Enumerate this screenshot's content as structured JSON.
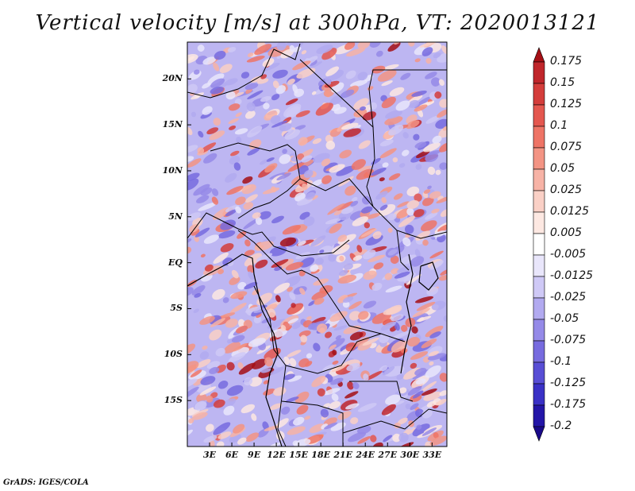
{
  "title": "Vertical velocity [m/s] at 300hPa, VT: 2020013121",
  "credit": "GrADS: IGES/COLA",
  "map": {
    "lon_range": [
      0,
      35
    ],
    "lat_range": [
      -20,
      24
    ],
    "lat_labels": [
      {
        "lat": 20,
        "text": "20N"
      },
      {
        "lat": 15,
        "text": "15N"
      },
      {
        "lat": 10,
        "text": "10N"
      },
      {
        "lat": 5,
        "text": "5N"
      },
      {
        "lat": 0,
        "text": "EQ"
      },
      {
        "lat": -5,
        "text": "5S"
      },
      {
        "lat": -10,
        "text": "10S"
      },
      {
        "lat": -15,
        "text": "15S"
      }
    ],
    "lon_labels": [
      {
        "lon": 3,
        "text": "3E"
      },
      {
        "lon": 6,
        "text": "6E"
      },
      {
        "lon": 9,
        "text": "9E"
      },
      {
        "lon": 12,
        "text": "12E"
      },
      {
        "lon": 15,
        "text": "15E"
      },
      {
        "lon": 18,
        "text": "18E"
      },
      {
        "lon": 21,
        "text": "21E"
      },
      {
        "lon": 24,
        "text": "24E"
      },
      {
        "lon": 27,
        "text": "27E"
      },
      {
        "lon": 30,
        "text": "30E"
      },
      {
        "lon": 33,
        "text": "33E"
      }
    ]
  },
  "colorbar": {
    "labels": [
      "0.175",
      "0.15",
      "0.125",
      "0.1",
      "0.075",
      "0.05",
      "0.025",
      "0.0125",
      "0.005",
      "-0.005",
      "-0.0125",
      "-0.025",
      "-0.05",
      "-0.075",
      "-0.1",
      "-0.125",
      "-0.175",
      "-0.2"
    ],
    "colors": [
      "#a50f15",
      "#c0262b",
      "#d43d3b",
      "#e4574f",
      "#ee7466",
      "#f39484",
      "#f7b3a6",
      "#fad0c6",
      "#fde8e2",
      "#ffffff",
      "#e9e6fb",
      "#cfc9f6",
      "#b2aaf0",
      "#958ae8",
      "#776bdf",
      "#584ed5",
      "#3a31c6",
      "#2416a8",
      "#1a0a8a"
    ]
  }
}
